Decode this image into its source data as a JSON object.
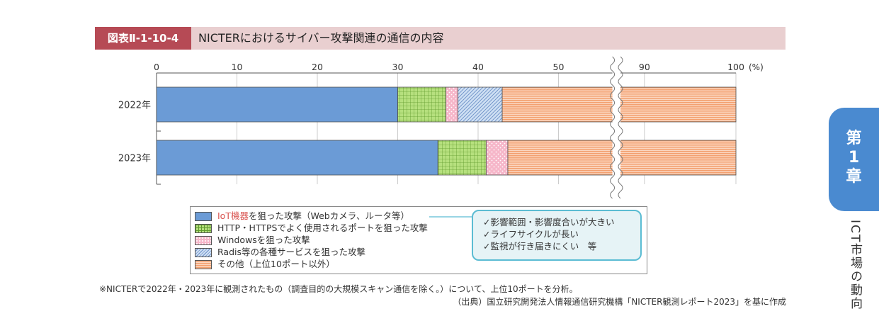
{
  "header": {
    "tag": "図表Ⅱ-1-10-4",
    "title": "NICTERにおけるサイバー攻撃関連の通信の内容"
  },
  "chart_data": {
    "type": "bar",
    "orientation": "horizontal",
    "stacked": true,
    "x_unit": "(%)",
    "x_ticks": [
      "0",
      "10",
      "20",
      "30",
      "40",
      "50",
      "90",
      "100"
    ],
    "axis_break": [
      56,
      88
    ],
    "xlim": [
      0,
      100
    ],
    "categories": [
      "2022年",
      "2023年"
    ],
    "series": [
      {
        "name": "IoT機器を狙った攻撃（Webカメラ、ルータ等）",
        "values": [
          30,
          35
        ],
        "color": "#6b9bd6"
      },
      {
        "name": "HTTP・HTTPSでよく使用されるポートを狙った攻撃",
        "values": [
          6,
          6
        ],
        "color": "#b6e07e"
      },
      {
        "name": "Windowsを狙った攻撃",
        "values": [
          1.5,
          2.7
        ],
        "color": "#f6b6c9"
      },
      {
        "name": "Radis等の各種サービスを狙った攻撃",
        "values": [
          5.5,
          0
        ],
        "color": "#aec6ea"
      },
      {
        "name": "その他（上位10ポート以外）",
        "values": [
          57,
          56.3
        ],
        "color": "#f6ae85"
      }
    ]
  },
  "legend": {
    "items": [
      {
        "highlight": "IoT機器",
        "rest": "を狙った攻撃（Webカメラ、ルータ等）"
      },
      {
        "text": "HTTP・HTTPSでよく使用されるポートを狙った攻撃"
      },
      {
        "text": "Windowsを狙った攻撃"
      },
      {
        "text": "Radis等の各種サービスを狙った攻撃"
      },
      {
        "text": "その他（上位10ポート以外）"
      }
    ]
  },
  "note": {
    "lines": [
      "✓影響範囲・影響度合いが大きい",
      "✓ライフサイクルが長い",
      "✓監視が行き届きにくい　等"
    ]
  },
  "footnote": "※NICTERで2022年・2023年に観測されたもの（調査目的の大規模スキャン通信を除く。）について、上位10ポートを分析。",
  "source": "（出典）国立研究開発法人情報通信研究機構「NICTER観測レポート2023」を基に作成",
  "side": {
    "chapter_top": "第",
    "chapter_num": "1",
    "chapter_bottom": "章",
    "section": "ICT市場の動向"
  }
}
